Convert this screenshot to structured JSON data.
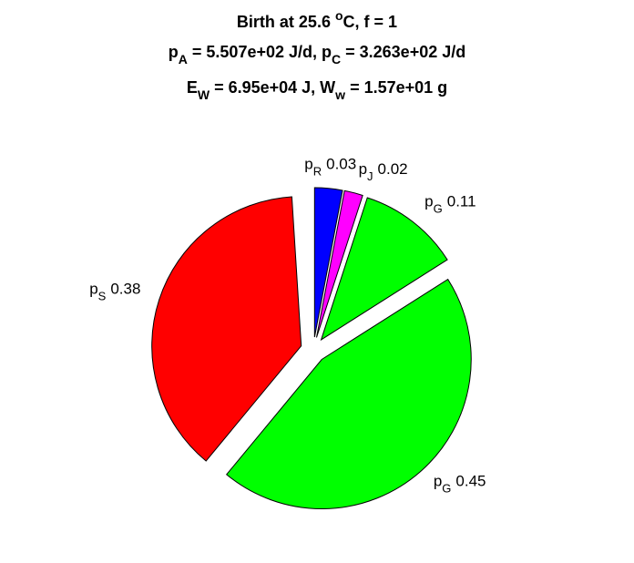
{
  "chart_data": {
    "type": "pie",
    "title": [
      [
        {
          "text": "Birth at 25.6 "
        },
        {
          "sup": "o"
        },
        {
          "text": "C, f = 1"
        }
      ],
      [
        {
          "text": "p"
        },
        {
          "sub": "A"
        },
        {
          "text": " = 5.507e+02 J/d, p"
        },
        {
          "sub": "C"
        },
        {
          "text": " = 3.263e+02 J/d"
        }
      ],
      [
        {
          "text": "E"
        },
        {
          "sub": "W"
        },
        {
          "text": " = 6.95e+04 J, W"
        },
        {
          "sub": "w"
        },
        {
          "text": " = 1.57e+01 g"
        }
      ]
    ],
    "categories": [
      {
        "symbol": "p",
        "subscript": "R"
      },
      {
        "symbol": "p",
        "subscript": "J"
      },
      {
        "symbol": "p",
        "subscript": "G"
      },
      {
        "symbol": "p",
        "subscript": "G"
      },
      {
        "symbol": "p",
        "subscript": "S"
      }
    ],
    "values": [
      0.03,
      0.02,
      0.11,
      0.45,
      0.38
    ],
    "colors": [
      "#0000ff",
      "#ff00ff",
      "#00ff00",
      "#00ff00",
      "#ff0000"
    ],
    "exploded": true
  }
}
